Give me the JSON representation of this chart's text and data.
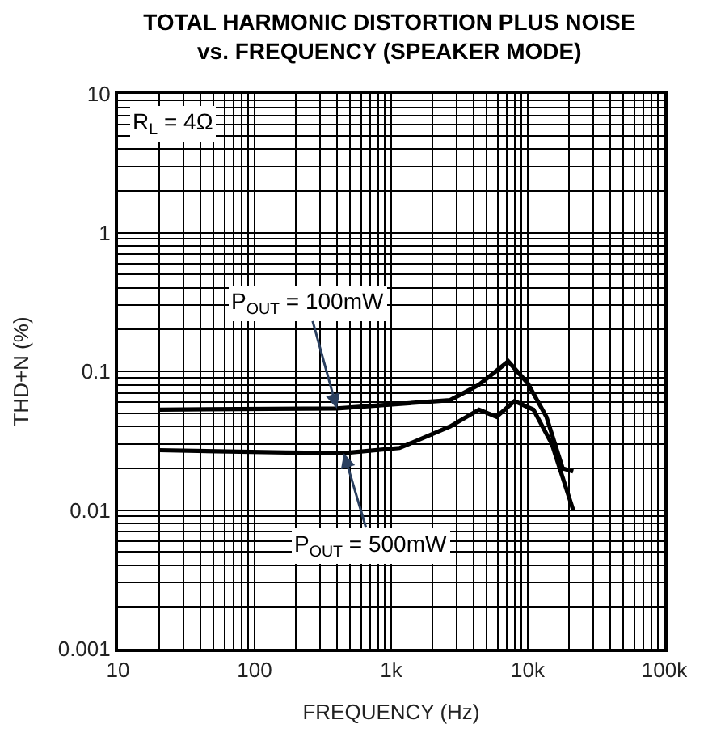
{
  "chart_data": {
    "type": "line",
    "title": "TOTAL HARMONIC DISTORTION PLUS NOISE\nvs. FREQUENCY (SPEAKER MODE)",
    "xlabel": "FREQUENCY (Hz)",
    "ylabel": "THD+N (%)",
    "log": "xy",
    "grid": true,
    "legend": false,
    "marker": "none",
    "line_style": "solid",
    "xlim": [
      10,
      100000
    ],
    "ylim": [
      0.001,
      10
    ],
    "xticks": [
      10,
      100,
      {
        "value": 1000,
        "label": "1k"
      },
      {
        "value": 10000,
        "label": "10k"
      },
      {
        "value": 100000,
        "label": "100k"
      }
    ],
    "yticks": [
      0.001,
      0.01,
      0.1,
      1,
      10
    ],
    "series": [
      {
        "color": "#000000",
        "x": [
          20,
          400,
          2700,
          4400,
          7200,
          10000,
          13700,
          18000,
          21500
        ],
        "values": [
          0.053,
          0.054,
          0.062,
          0.08,
          0.118,
          0.082,
          0.047,
          0.02,
          0.019
        ]
      },
      {
        "color": "#000000",
        "x": [
          20,
          170,
          450,
          1150,
          2700,
          4400,
          5900,
          8000,
          11000,
          15000,
          21500
        ],
        "values": [
          0.027,
          0.026,
          0.0257,
          0.028,
          0.04,
          0.053,
          0.047,
          0.061,
          0.053,
          0.03,
          0.01
        ]
      }
    ],
    "annotations": [
      "R$_{L}$ = 4Ω",
      {
        "text": "P$_{OUT}$ = 100mW",
        "x": 400,
        "y": 0.054
      },
      {
        "text": "P$_{OUT}$ = 500mW",
        "x": 450,
        "y": 0.0257
      }
    ]
  }
}
